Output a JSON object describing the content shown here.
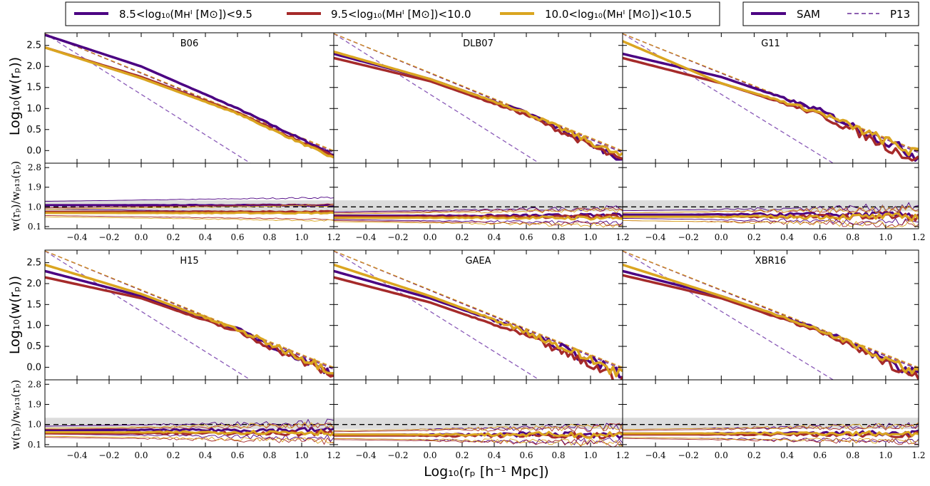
{
  "legend_mass": [
    {
      "label": "8.5<log₁₀(Mʜᴵ [M⊙])<9.5",
      "color": "#4b0082"
    },
    {
      "label": "9.5<log₁₀(Mʜᴵ [M⊙])<10.0",
      "color": "#a52a2a"
    },
    {
      "label": "10.0<log₁₀(Mʜᴵ [M⊙])<10.5",
      "color": "#daa520"
    }
  ],
  "legend_type": [
    {
      "label": "SAM",
      "style": "solid-thick"
    },
    {
      "label": "P13",
      "style": "dashed"
    }
  ],
  "xlabel": "Log₁₀(rₚ [h⁻¹ Mpc])",
  "ylabel_top": "Log₁₀(w(rₚ))",
  "ylabel_bottom": "w(rₚ)/wₚ₁₃(rₚ)",
  "colors": {
    "m1": "#4b0082",
    "m2": "#a52a2a",
    "m3": "#daa520",
    "p13_line": "#8a5ab8",
    "band": "#d3d3d3"
  },
  "chart_data": {
    "type": "line",
    "xlim": [
      -0.6,
      1.2
    ],
    "xticks": [
      "−0.4",
      "−0.2",
      "0.0",
      "0.2",
      "0.4",
      "0.6",
      "0.8",
      "1.0",
      "1.2"
    ],
    "xtick_values": [
      -0.4,
      -0.2,
      0.0,
      0.2,
      0.4,
      0.6,
      0.8,
      1.0,
      1.2
    ],
    "top_ylim": [
      -0.3,
      2.8
    ],
    "top_yticks": [
      "0.0",
      "0.5",
      "1.0",
      "1.5",
      "2.0",
      "2.5"
    ],
    "top_ytick_values": [
      0.0,
      0.5,
      1.0,
      1.5,
      2.0,
      2.5
    ],
    "ratio_ylim": [
      0.0,
      3.0
    ],
    "ratio_yticks": [
      "0.1",
      "1.0",
      "1.9",
      "2.8"
    ],
    "ratio_ytick_values": [
      0.1,
      1.0,
      1.9,
      2.8
    ],
    "ratio_reference": 1.0,
    "ratio_band": [
      0.8,
      1.3
    ],
    "p13_reference": {
      "x": [
        -0.6,
        1.2
      ],
      "m1": [
        2.78,
        -0.05
      ],
      "m2": [
        2.78,
        -0.02
      ],
      "m3": [
        2.78,
        0.0
      ],
      "steep": [
        2.78,
        -1.55
      ]
    },
    "panels": [
      {
        "title": "B06",
        "sam_top": {
          "m1": {
            "x": [
              -0.6,
              0.0,
              0.6,
              1.2
            ],
            "y": [
              2.75,
              2.0,
              1.0,
              -0.1
            ]
          },
          "m2": {
            "x": [
              -0.6,
              0.0,
              0.6,
              1.2
            ],
            "y": [
              2.45,
              1.75,
              0.9,
              -0.15
            ]
          },
          "m3": {
            "x": [
              -0.6,
              0.0,
              0.6,
              1.2
            ],
            "y": [
              2.45,
              1.72,
              0.88,
              -0.18
            ]
          }
        },
        "ratio": {
          "m1": 1.08,
          "m2": 0.78,
          "m3": 0.72
        },
        "noise": 0.02
      },
      {
        "title": "DLB07",
        "sam_top": {
          "m1": {
            "x": [
              -0.6,
              0.0,
              0.6,
              1.2
            ],
            "y": [
              2.3,
              1.7,
              0.9,
              -0.2
            ]
          },
          "m2": {
            "x": [
              -0.6,
              0.0,
              0.6,
              1.2
            ],
            "y": [
              2.2,
              1.65,
              0.85,
              -0.25
            ]
          },
          "m3": {
            "x": [
              -0.6,
              0.0,
              0.6,
              1.2
            ],
            "y": [
              2.35,
              1.7,
              0.9,
              -0.15
            ]
          }
        },
        "ratio": {
          "m1": 0.6,
          "m2": 0.55,
          "m3": 0.5
        },
        "noise": 0.06
      },
      {
        "title": "G11",
        "sam_top": {
          "m1": {
            "x": [
              -0.6,
              0.0,
              0.6,
              1.2
            ],
            "y": [
              2.3,
              1.75,
              0.95,
              -0.15
            ]
          },
          "m2": {
            "x": [
              -0.6,
              0.0,
              0.6,
              1.2
            ],
            "y": [
              2.2,
              1.6,
              0.85,
              -0.25
            ]
          },
          "m3": {
            "x": [
              -0.6,
              0.0,
              0.6,
              1.2
            ],
            "y": [
              2.6,
              1.6,
              0.9,
              -0.1
            ]
          }
        },
        "ratio": {
          "m1": 0.65,
          "m2": 0.55,
          "m3": 0.55
        },
        "noise": 0.1
      },
      {
        "title": "H15",
        "sam_top": {
          "m1": {
            "x": [
              -0.6,
              0.0,
              0.6,
              1.2
            ],
            "y": [
              2.3,
              1.7,
              0.9,
              -0.15
            ]
          },
          "m2": {
            "x": [
              -0.6,
              0.0,
              0.6,
              1.2
            ],
            "y": [
              2.15,
              1.65,
              0.85,
              -0.2
            ]
          },
          "m3": {
            "x": [
              -0.6,
              0.0,
              0.6,
              1.2
            ],
            "y": [
              2.45,
              1.75,
              0.9,
              -0.1
            ]
          }
        },
        "ratio": {
          "m1": 0.75,
          "m2": 0.6,
          "m3": 0.65
        },
        "noise": 0.08
      },
      {
        "title": "GAEA",
        "sam_top": {
          "m1": {
            "x": [
              -0.6,
              0.0,
              0.6,
              1.2
            ],
            "y": [
              2.3,
              1.65,
              0.85,
              -0.2
            ]
          },
          "m2": {
            "x": [
              -0.6,
              0.0,
              0.6,
              1.2
            ],
            "y": [
              2.15,
              1.55,
              0.75,
              -0.3
            ]
          },
          "m3": {
            "x": [
              -0.6,
              0.0,
              0.6,
              1.2
            ],
            "y": [
              2.45,
              1.7,
              0.85,
              -0.15
            ]
          }
        },
        "ratio": {
          "m1": 0.55,
          "m2": 0.5,
          "m3": 0.55
        },
        "noise": 0.1
      },
      {
        "title": "XBR16",
        "sam_top": {
          "m1": {
            "x": [
              -0.6,
              0.0,
              0.6,
              1.2
            ],
            "y": [
              2.3,
              1.7,
              0.9,
              -0.2
            ]
          },
          "m2": {
            "x": [
              -0.6,
              0.0,
              0.6,
              1.2
            ],
            "y": [
              2.2,
              1.65,
              0.85,
              -0.25
            ]
          },
          "m3": {
            "x": [
              -0.6,
              0.0,
              0.6,
              1.2
            ],
            "y": [
              2.45,
              1.7,
              0.9,
              -0.15
            ]
          }
        },
        "ratio": {
          "m1": 0.6,
          "m2": 0.55,
          "m3": 0.6
        },
        "noise": 0.08
      }
    ]
  }
}
